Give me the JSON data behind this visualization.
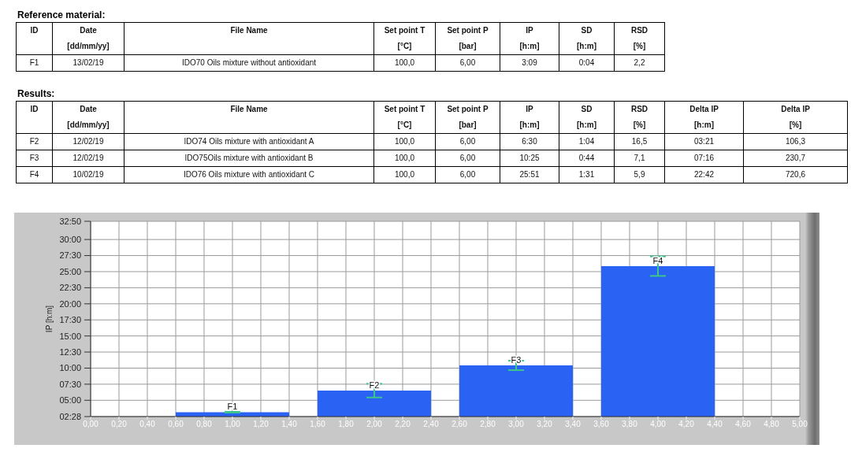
{
  "chart_data": [
    {
      "type": "other",
      "title": "Reference material:",
      "categories": [
        "ID",
        "Date",
        "File Name",
        "Set point T",
        "Set point P",
        "IP",
        "SD",
        "RSD"
      ],
      "cell_labels": [
        [
          null,
          "[dd/mm/yy]",
          null,
          "[°C]",
          "[bar]",
          "[h:m]",
          "[h:m]",
          "[%]"
        ],
        [
          "F1",
          "13/02/19",
          "IDO70 Oils mixture without antioxidant",
          "100,0",
          "6,00",
          "3:09",
          "0:04",
          "2,2"
        ]
      ]
    },
    {
      "type": "other",
      "title": "Results:",
      "categories": [
        "ID",
        "Date",
        "File Name",
        "Set point T",
        "Set point P",
        "IP",
        "SD",
        "RSD",
        "Delta IP",
        "Delta IP"
      ],
      "cell_labels": [
        [
          null,
          "[dd/mm/yy]",
          null,
          "[°C]",
          "[bar]",
          "[h:m]",
          "[h:m]",
          "[%]",
          "[h:m]",
          "[%]"
        ],
        [
          "F2",
          "12/02/19",
          "IDO74 Oils mixture with antioxidant A",
          "100,0",
          "6,00",
          "6:30",
          "1:04",
          "16,5",
          "03:21",
          "106,3"
        ],
        [
          "F3",
          "12/02/19",
          "IDO75Oils mixture with antioxidant B",
          "100,0",
          "6,00",
          "10:25",
          "0:44",
          "7,1",
          "07:16",
          "230,7"
        ],
        [
          "F4",
          "10/02/19",
          "IDO76 Oils mixture with antioxidant C",
          "100,0",
          "6,00",
          "25:51",
          "1:31",
          "5,9",
          "22:42",
          "720,6"
        ]
      ]
    },
    {
      "type": "bar",
      "ylabel": "IP [h:m]",
      "x": [
        1,
        2,
        3,
        4
      ],
      "values": [
        3.15,
        6.5,
        10.4167,
        25.85
      ],
      "errors": [
        0.0667,
        1.0667,
        0.7333,
        1.5167
      ],
      "color": "#2a62f4",
      "xlim": [
        0,
        5
      ],
      "xticks": [
        {
          "value": 0,
          "label": "0,00"
        },
        {
          "value": 0.2,
          "label": "0,20"
        },
        {
          "value": 0.4,
          "label": "0,40"
        },
        {
          "value": 0.6,
          "label": "0,60"
        },
        {
          "value": 0.8,
          "label": "0,80"
        },
        {
          "value": 1,
          "label": "1,00"
        },
        {
          "value": 1.2,
          "label": "1,20"
        },
        {
          "value": 1.4,
          "label": "1,40"
        },
        {
          "value": 1.6,
          "label": "1,60"
        },
        {
          "value": 1.8,
          "label": "1,80"
        },
        {
          "value": 2,
          "label": "2,00"
        },
        {
          "value": 2.2,
          "label": "2,20"
        },
        {
          "value": 2.4,
          "label": "2,40"
        },
        {
          "value": 2.6,
          "label": "2,60"
        },
        {
          "value": 2.8,
          "label": "2,80"
        },
        {
          "value": 3,
          "label": "3,00"
        },
        {
          "value": 3.2,
          "label": "3,20"
        },
        {
          "value": 3.4,
          "label": "3,40"
        },
        {
          "value": 3.6,
          "label": "3,60"
        },
        {
          "value": 3.8,
          "label": "3,80"
        },
        {
          "value": 4,
          "label": "4,00"
        },
        {
          "value": 4.2,
          "label": "4,20"
        },
        {
          "value": 4.4,
          "label": "4,40"
        },
        {
          "value": 4.6,
          "label": "4,60"
        },
        {
          "value": 4.8,
          "label": "4,80"
        },
        {
          "value": 5,
          "label": "5,00"
        }
      ],
      "ylim": [
        2.4667,
        32.8333
      ],
      "yticks": [
        {
          "value": 2.4667,
          "label": "02:28"
        },
        {
          "value": 5,
          "label": "05:00"
        },
        {
          "value": 7.5,
          "label": "07:30"
        },
        {
          "value": 10,
          "label": "10:00"
        },
        {
          "value": 12.5,
          "label": "12:30"
        },
        {
          "value": 15,
          "label": "15:00"
        },
        {
          "value": 17.5,
          "label": "17:30"
        },
        {
          "value": 20,
          "label": "20:00"
        },
        {
          "value": 22.5,
          "label": "22:30"
        },
        {
          "value": 25,
          "label": "25:00"
        },
        {
          "value": 27.5,
          "label": "27:30"
        },
        {
          "value": 30,
          "label": "30:00"
        },
        {
          "value": 32.8333,
          "label": "32:50"
        }
      ],
      "grid": true,
      "annotations": [
        {
          "text": "F1",
          "x": 1,
          "y": 3.15
        },
        {
          "text": "F2",
          "x": 2,
          "y": 6.5
        },
        {
          "text": "F3",
          "x": 3,
          "y": 10.4167
        },
        {
          "text": "F4",
          "x": 4,
          "y": 25.85
        }
      ]
    }
  ]
}
